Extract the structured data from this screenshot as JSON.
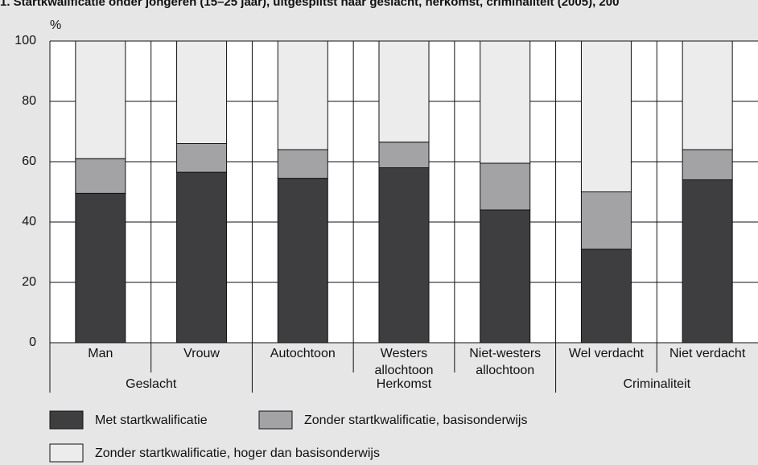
{
  "chart_data": {
    "type": "stacked_bar",
    "title": "1.  Startkwalificatie onder jongeren (15–25 jaar), uitgesplitst naar geslacht, herkomst, criminaliteit (2005), 200",
    "y_label": "%",
    "categories": [
      "Man",
      "Vrouw",
      "Autochtoon",
      "Westers\nallochtoon",
      "Niet-westers\nallochtoon",
      "Wel verdacht",
      "Niet verdacht"
    ],
    "groups": [
      {
        "label": "Geslacht",
        "span": 2
      },
      {
        "label": "Herkomst",
        "span": 3
      },
      {
        "label": "Criminaliteit",
        "span": 2
      }
    ],
    "series": [
      {
        "name": "Met startkwalificatie",
        "color": "#3e3e40",
        "values": [
          49.5,
          56.5,
          54.5,
          58,
          44,
          31,
          54
        ]
      },
      {
        "name": "Zonder startkwalificatie, basisonderwijs",
        "color": "#a3a3a5",
        "values": [
          11.5,
          9.5,
          9.5,
          8.5,
          15.5,
          19,
          10
        ]
      },
      {
        "name": "Zonder startkwalificatie, hoger dan basisonderwijs",
        "color": "#ececec",
        "values": [
          39,
          34,
          36,
          33.5,
          40.5,
          50,
          36
        ]
      }
    ],
    "ylim": [
      0,
      100
    ],
    "yticks": [
      0,
      20,
      40,
      60,
      80,
      100
    ],
    "grid": true
  }
}
